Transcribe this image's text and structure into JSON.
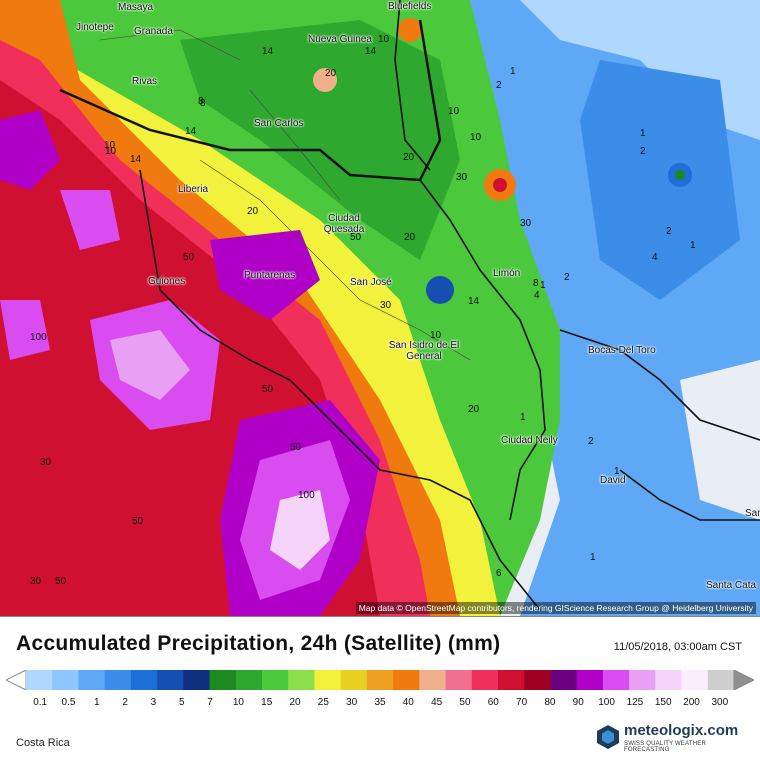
{
  "title": "Accumulated Precipitation, 24h (Satellite) (mm)",
  "datetime": "11/05/2018, 03:00am CST",
  "region": "Costa Rica",
  "attribution": "Map data © OpenStreetMap contributors, rendering GIScience Research Group @ Heidelberg University",
  "logo": {
    "name": "meteologix.com",
    "tagline": "SWISS QUALITY WEATHER FORECASTING"
  },
  "cities": [
    {
      "name": "Masaya"
    },
    {
      "name": "Jinotepe"
    },
    {
      "name": "Granada"
    },
    {
      "name": "Bluefields"
    },
    {
      "name": "Nueva Guinea"
    },
    {
      "name": "Rivas"
    },
    {
      "name": "San Carlos"
    },
    {
      "name": "Liberia"
    },
    {
      "name": "Ciudad Quesada"
    },
    {
      "name": "Guiones"
    },
    {
      "name": "Puntarenas"
    },
    {
      "name": "San José"
    },
    {
      "name": "Limón"
    },
    {
      "name": "San Isidro de El General"
    },
    {
      "name": "Bocas Del Toro"
    },
    {
      "name": "Ciudad Neily"
    },
    {
      "name": "David"
    },
    {
      "name": "Santa Cata"
    },
    {
      "name": "Santiago de"
    }
  ],
  "contour_labels": [
    "14",
    "10",
    "20",
    "14",
    "10",
    "1",
    "2",
    "8",
    "14",
    "10",
    "14",
    "10",
    "30",
    "1",
    "2",
    "20",
    "20",
    "30",
    "2",
    "4",
    "1",
    "50",
    "50",
    "20",
    "14",
    "8",
    "4",
    "2",
    "30",
    "10",
    "100",
    "50",
    "20",
    "1",
    "2",
    "1",
    "30",
    "100",
    "1",
    "50",
    "30",
    "50",
    "6",
    "1",
    "50",
    "8",
    "10"
  ],
  "legend": {
    "labels": [
      "0.1",
      "0.5",
      "1",
      "2",
      "3",
      "5",
      "7",
      "10",
      "15",
      "20",
      "25",
      "30",
      "35",
      "40",
      "45",
      "50",
      "60",
      "70",
      "80",
      "90",
      "100",
      "125",
      "150",
      "200",
      "300"
    ],
    "colors": [
      "#b0d8ff",
      "#8ec6ff",
      "#5ea8f5",
      "#3b8de8",
      "#1e6fd6",
      "#1550b0",
      "#0e2f80",
      "#1c8a1c",
      "#2ea82e",
      "#4cc83c",
      "#8be04a",
      "#f2f23c",
      "#e8d020",
      "#f0a020",
      "#f07a10",
      "#f0b08c",
      "#f07090",
      "#f0305a",
      "#d01030",
      "#a00020",
      "#6a0080",
      "#b000c8",
      "#d84cf0",
      "#e8a0f4",
      "#f4d4f8",
      "#fbeefd",
      "#cfcfcf"
    ]
  },
  "colors": {
    "sea": "#e8eef3",
    "land_light": "#ffffff"
  }
}
